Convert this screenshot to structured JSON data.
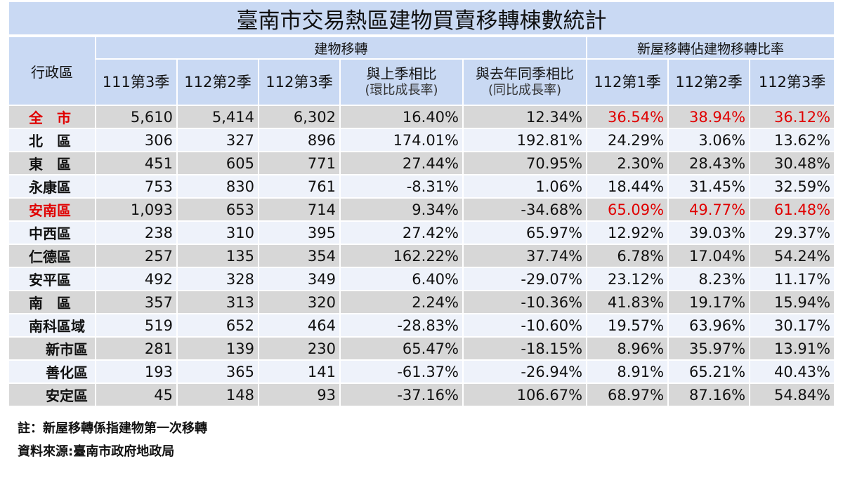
{
  "title": "臺南市交易熱區建物買賣移轉棟數統計",
  "header": {
    "region": "行政區",
    "group1": "建物移轉",
    "group2": "新屋移轉佔建物移轉比率",
    "cols": [
      {
        "l1": "111第3季",
        "l2": ""
      },
      {
        "l1": "112第2季",
        "l2": ""
      },
      {
        "l1": "112第3季",
        "l2": ""
      },
      {
        "l1": "與上季相比",
        "l2": "(環比成長率)"
      },
      {
        "l1": "與去年同季相比",
        "l2": "(同比成長率)"
      },
      {
        "l1": "112第1季",
        "l2": ""
      },
      {
        "l1": "112第2季",
        "l2": ""
      },
      {
        "l1": "112第3季",
        "l2": ""
      }
    ]
  },
  "rows": [
    {
      "name": "全　市",
      "red_name": true,
      "red_ratios": true,
      "spaced": false,
      "indent": false,
      "values": [
        "5,610",
        "5,414",
        "6,302",
        "16.40%",
        "12.34%",
        "36.54%",
        "38.94%",
        "36.12%"
      ]
    },
    {
      "name": "北　區",
      "red_name": false,
      "red_ratios": false,
      "spaced": false,
      "indent": false,
      "values": [
        "306",
        "327",
        "896",
        "174.01%",
        "192.81%",
        "24.29%",
        "3.06%",
        "13.62%"
      ]
    },
    {
      "name": "東　區",
      "red_name": false,
      "red_ratios": false,
      "spaced": false,
      "indent": false,
      "values": [
        "451",
        "605",
        "771",
        "27.44%",
        "70.95%",
        "2.30%",
        "28.43%",
        "30.48%"
      ]
    },
    {
      "name": "永康區",
      "red_name": false,
      "red_ratios": false,
      "spaced": false,
      "indent": false,
      "values": [
        "753",
        "830",
        "761",
        "-8.31%",
        "1.06%",
        "18.44%",
        "31.45%",
        "32.59%"
      ]
    },
    {
      "name": "安南區",
      "red_name": true,
      "red_ratios": true,
      "spaced": false,
      "indent": false,
      "values": [
        "1,093",
        "653",
        "714",
        "9.34%",
        "-34.68%",
        "65.09%",
        "49.77%",
        "61.48%"
      ]
    },
    {
      "name": "中西區",
      "red_name": false,
      "red_ratios": false,
      "spaced": false,
      "indent": false,
      "values": [
        "238",
        "310",
        "395",
        "27.42%",
        "65.97%",
        "12.92%",
        "39.03%",
        "29.37%"
      ]
    },
    {
      "name": "仁德區",
      "red_name": false,
      "red_ratios": false,
      "spaced": false,
      "indent": false,
      "values": [
        "257",
        "135",
        "354",
        "162.22%",
        "37.74%",
        "6.78%",
        "17.04%",
        "54.24%"
      ]
    },
    {
      "name": "安平區",
      "red_name": false,
      "red_ratios": false,
      "spaced": false,
      "indent": false,
      "values": [
        "492",
        "328",
        "349",
        "6.40%",
        "-29.07%",
        "23.12%",
        "8.23%",
        "11.17%"
      ]
    },
    {
      "name": "南　區",
      "red_name": false,
      "red_ratios": false,
      "spaced": false,
      "indent": false,
      "values": [
        "357",
        "313",
        "320",
        "2.24%",
        "-10.36%",
        "41.83%",
        "19.17%",
        "15.94%"
      ]
    },
    {
      "name": "南科區域",
      "red_name": false,
      "red_ratios": false,
      "spaced": false,
      "indent": false,
      "values": [
        "519",
        "652",
        "464",
        "-28.83%",
        "-10.60%",
        "19.57%",
        "63.96%",
        "30.17%"
      ]
    },
    {
      "name": "新市區",
      "red_name": false,
      "red_ratios": false,
      "spaced": false,
      "indent": true,
      "values": [
        "281",
        "139",
        "230",
        "65.47%",
        "-18.15%",
        "8.96%",
        "35.97%",
        "13.91%"
      ]
    },
    {
      "name": "善化區",
      "red_name": false,
      "red_ratios": false,
      "spaced": false,
      "indent": true,
      "values": [
        "193",
        "365",
        "141",
        "-61.37%",
        "-26.94%",
        "8.91%",
        "65.21%",
        "40.43%"
      ]
    },
    {
      "name": "安定區",
      "red_name": false,
      "red_ratios": false,
      "spaced": false,
      "indent": true,
      "values": [
        "45",
        "148",
        "93",
        "-37.16%",
        "106.67%",
        "68.97%",
        "87.16%",
        "54.84%"
      ]
    }
  ],
  "notes": [
    "註：新屋移轉係指建物第一次移轉",
    "資料來源:臺南市政府地政局"
  ],
  "colors": {
    "header_bg": "#c9d9f3",
    "row_gray": "#d7d7d7",
    "row_light": "#eef2fa",
    "highlight_red": "#e00000"
  }
}
